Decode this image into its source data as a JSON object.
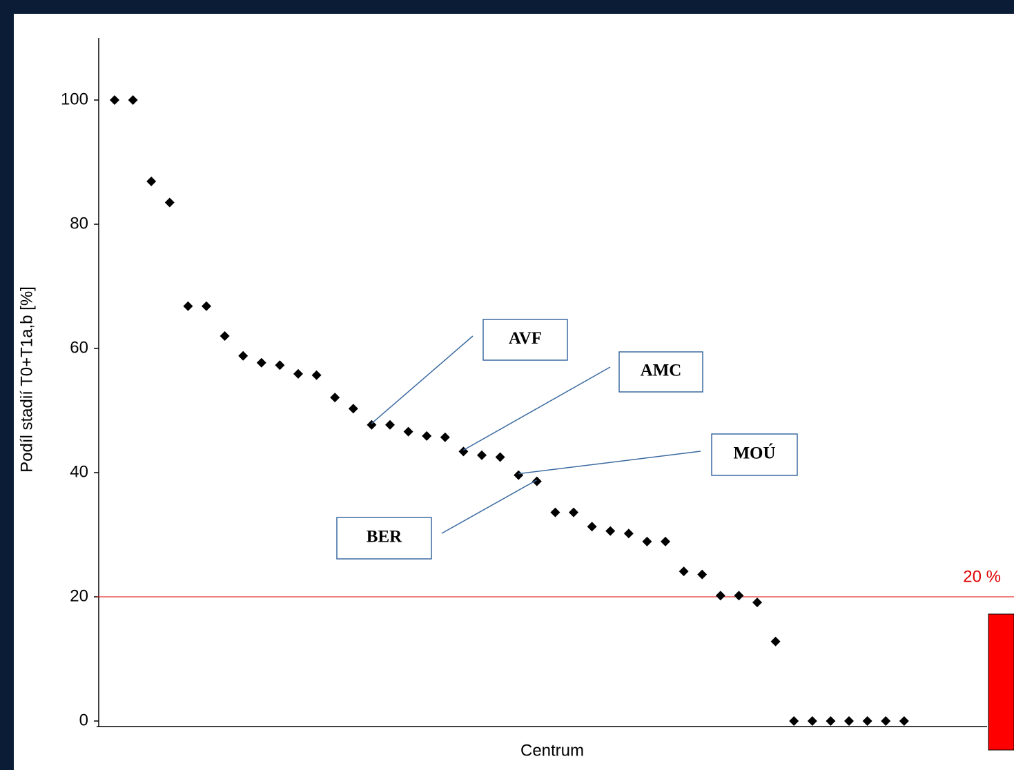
{
  "chart_data": {
    "type": "scatter",
    "y_label": "Podíl stadií T0+T1a,b [%]",
    "x_label": "Centrum",
    "values": [
      100,
      100,
      86.9,
      83.5,
      66.8,
      66.8,
      62.0,
      58.8,
      57.7,
      57.3,
      55.9,
      55.7,
      52.1,
      50.3,
      47.7,
      47.7,
      46.6,
      45.9,
      45.7,
      43.4,
      42.8,
      42.5,
      39.6,
      38.6,
      33.6,
      33.6,
      31.3,
      30.6,
      30.2,
      28.9,
      28.9,
      24.1,
      23.6,
      20.2,
      20.2,
      19.1,
      12.8,
      0,
      0,
      0,
      0,
      0,
      0,
      0
    ],
    "color": "#000000",
    "ylim": [
      0,
      110
    ],
    "yticks": [
      0,
      20,
      40,
      60,
      80,
      100
    ],
    "reference_line": {
      "value": 20,
      "label": "20 %",
      "color": "#e00000"
    },
    "annotations": [
      "AVF",
      "AMC",
      "MOÚ",
      "BER"
    ]
  }
}
